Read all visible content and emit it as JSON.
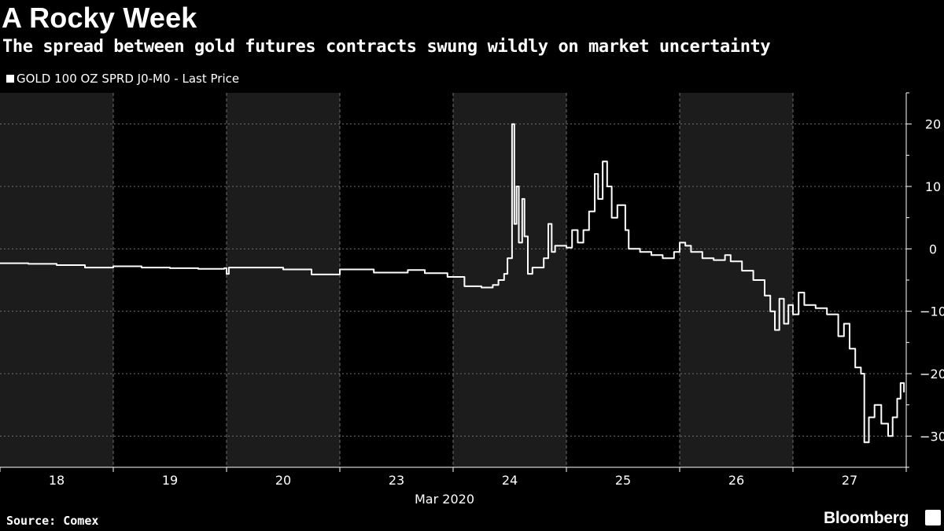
{
  "title": "A Rocky Week",
  "subtitle": "The spread between gold futures contracts swung wildly on market uncertainty",
  "footer": {
    "source": "Source: Comex",
    "brand": "Bloomberg",
    "brand_icon": "bloomberg-terminal-icon"
  },
  "colors": {
    "background": "#000000",
    "shade_band": "#1c1c1c",
    "line": "#ffffff",
    "grid": "#6e6e6e",
    "text": "#ffffff"
  },
  "chart_data": {
    "type": "line",
    "x_axis_label": "Mar 2020",
    "categories": [
      "18",
      "19",
      "20",
      "23",
      "24",
      "25",
      "26",
      "27"
    ],
    "shaded_days": [
      "18",
      "20",
      "24",
      "26"
    ],
    "ylim": [
      -35,
      25
    ],
    "yticks": [
      20,
      10,
      0,
      -10,
      -20,
      -30
    ],
    "grid": "horizontal dashed at y ticks; vertical dashed at day boundaries",
    "legend_position": "top-left",
    "series": [
      {
        "name": "GOLD 100 OZ SPRD J0-M0 - Last Price",
        "points": [
          [
            0.0,
            -2.3
          ],
          [
            0.25,
            -2.4
          ],
          [
            0.5,
            -2.6
          ],
          [
            0.75,
            -3.0
          ],
          [
            1.0,
            -2.8
          ],
          [
            1.25,
            -3.0
          ],
          [
            1.5,
            -3.1
          ],
          [
            1.75,
            -3.2
          ],
          [
            1.98,
            -3.1
          ],
          [
            2.0,
            -4.0
          ],
          [
            2.02,
            -3.0
          ],
          [
            2.25,
            -3.0
          ],
          [
            2.5,
            -3.3
          ],
          [
            2.75,
            -4.1
          ],
          [
            3.0,
            -3.3
          ],
          [
            3.3,
            -3.8
          ],
          [
            3.6,
            -3.4
          ],
          [
            3.75,
            -3.9
          ],
          [
            3.95,
            -4.5
          ],
          [
            4.1,
            -6.0
          ],
          [
            4.25,
            -6.2
          ],
          [
            4.35,
            -5.8
          ],
          [
            4.4,
            -5.0
          ],
          [
            4.45,
            -4.0
          ],
          [
            4.48,
            -1.5
          ],
          [
            4.52,
            20.0
          ],
          [
            4.54,
            4.0
          ],
          [
            4.56,
            10.0
          ],
          [
            4.58,
            1.0
          ],
          [
            4.61,
            8.0
          ],
          [
            4.63,
            2.0
          ],
          [
            4.66,
            -4.0
          ],
          [
            4.7,
            -3.0
          ],
          [
            4.8,
            -1.5
          ],
          [
            4.84,
            4.0
          ],
          [
            4.87,
            -0.5
          ],
          [
            4.9,
            0.5
          ],
          [
            5.0,
            0.2
          ],
          [
            5.05,
            3.0
          ],
          [
            5.1,
            1.0
          ],
          [
            5.15,
            3.0
          ],
          [
            5.2,
            6.0
          ],
          [
            5.25,
            12.0
          ],
          [
            5.28,
            8.0
          ],
          [
            5.32,
            14.0
          ],
          [
            5.36,
            10.0
          ],
          [
            5.4,
            5.0
          ],
          [
            5.45,
            7.0
          ],
          [
            5.52,
            3.0
          ],
          [
            5.55,
            0.0
          ],
          [
            5.65,
            -0.5
          ],
          [
            5.75,
            -1.0
          ],
          [
            5.85,
            -1.5
          ],
          [
            5.95,
            -0.5
          ],
          [
            6.0,
            1.0
          ],
          [
            6.05,
            0.5
          ],
          [
            6.1,
            -0.5
          ],
          [
            6.2,
            -1.5
          ],
          [
            6.3,
            -1.8
          ],
          [
            6.4,
            -1.0
          ],
          [
            6.45,
            -2.0
          ],
          [
            6.55,
            -3.5
          ],
          [
            6.65,
            -5.0
          ],
          [
            6.75,
            -7.5
          ],
          [
            6.8,
            -10.0
          ],
          [
            6.84,
            -13.0
          ],
          [
            6.88,
            -8.0
          ],
          [
            6.92,
            -12.0
          ],
          [
            6.96,
            -9.0
          ],
          [
            7.0,
            -10.5
          ],
          [
            7.05,
            -7.0
          ],
          [
            7.1,
            -9.0
          ],
          [
            7.2,
            -9.5
          ],
          [
            7.3,
            -10.5
          ],
          [
            7.4,
            -14.0
          ],
          [
            7.45,
            -12.0
          ],
          [
            7.5,
            -16.0
          ],
          [
            7.55,
            -19.0
          ],
          [
            7.6,
            -20.0
          ],
          [
            7.63,
            -31.0
          ],
          [
            7.67,
            -27.0
          ],
          [
            7.72,
            -25.0
          ],
          [
            7.78,
            -28.0
          ],
          [
            7.84,
            -30.0
          ],
          [
            7.88,
            -27.0
          ],
          [
            7.92,
            -24.0
          ],
          [
            7.95,
            -21.5
          ],
          [
            7.98,
            -23.0
          ]
        ]
      }
    ]
  }
}
